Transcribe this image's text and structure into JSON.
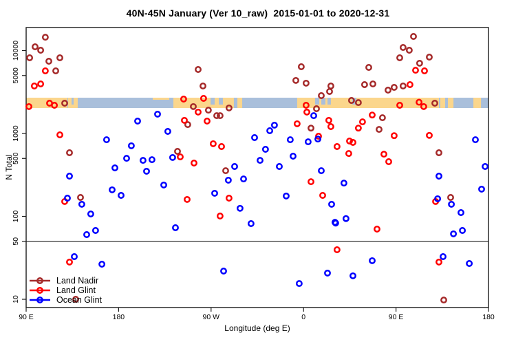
{
  "title": "40N-45N January (Ver 10_raw)  2015-01-01 to 2020-12-31",
  "axes": {
    "x": {
      "label": "Longitude (deg E)",
      "range_deg_plot": [
        90,
        540
      ],
      "ticks": [
        {
          "deg": 90,
          "label": "90 E"
        },
        {
          "deg": 180,
          "label": "180"
        },
        {
          "deg": 270,
          "label": "90 W"
        },
        {
          "deg": 360,
          "label": "0"
        },
        {
          "deg": 450,
          "label": "90 E"
        },
        {
          "deg": 540,
          "label": "180"
        }
      ]
    },
    "y": {
      "label": "N Total",
      "scale": "log",
      "range": [
        9,
        20000
      ],
      "ticks": [
        {
          "value": 10,
          "label": "10"
        },
        {
          "value": 50,
          "label": "50"
        },
        {
          "value": 100,
          "label": "100"
        },
        {
          "value": 500,
          "label": "500"
        },
        {
          "value": 1000,
          "label": "1000"
        },
        {
          "value": 5000,
          "label": "5000"
        },
        {
          "value": 10000,
          "label": "10000"
        }
      ]
    }
  },
  "chart_data": {
    "type": "scatter",
    "title": "40N-45N January (Ver 10_raw)  2015-01-01 to 2020-12-31",
    "xlabel": "Longitude (deg E)",
    "ylabel": "N Total",
    "grid": false,
    "legend_position": "bottom-left",
    "reference_line_n": 50,
    "map_band": {
      "description": "geographic strip of 40N-45N latitude drawn across plot near N=2300",
      "n_top": 2700,
      "n_bottom": 1950,
      "sea_color": "#A9BFDB",
      "land_color": "#FBD68C",
      "land_segments_deg": [
        [
          90,
          130.2
        ],
        [
          130.8,
          140.2
        ],
        [
          233.3,
          292.2
        ],
        [
          295.6,
          300.3
        ],
        [
          353.8,
          491.8
        ],
        [
          493.1,
          497.8
        ],
        [
          500.5,
          505.9
        ],
        [
          525.3,
          532.7
        ]
      ],
      "sea_notches_deg": [
        [
          134.2,
          136.2
        ],
        [
          269.5,
          273.5
        ],
        [
          277.5,
          281.5
        ],
        [
          371.2,
          375.3
        ],
        [
          377.3,
          381.3
        ],
        [
          383.3,
          386.6
        ],
        [
          407.4,
          411.4
        ]
      ],
      "land_slivers_deg": [
        [
          213.2,
          229.3
        ]
      ]
    },
    "series": [
      {
        "name": "Land Nadir",
        "color": "#A52A2A",
        "points": [
          [
            108.7,
            14500
          ],
          [
            98.7,
            11100
          ],
          [
            104.1,
            10100
          ],
          [
            93.4,
            8180
          ],
          [
            122.8,
            8180
          ],
          [
            112.1,
            7430
          ],
          [
            118.8,
            5690
          ],
          [
            127.5,
            2320
          ],
          [
            132.2,
            586
          ],
          [
            237.3,
            608
          ],
          [
            252.7,
            2110
          ],
          [
            247.3,
            1280
          ],
          [
            257.4,
            5910
          ],
          [
            262.1,
            3740
          ],
          [
            357.8,
            6380
          ],
          [
            352.5,
            4360
          ],
          [
            362.5,
            4040
          ],
          [
            386.6,
            3740
          ],
          [
            385.3,
            3210
          ],
          [
            377.3,
            2860
          ],
          [
            287.5,
            2030
          ],
          [
            267.4,
            1910
          ],
          [
            275.5,
            1640
          ],
          [
            278.8,
            1640
          ],
          [
            372.6,
            1990
          ],
          [
            367.2,
            1160
          ],
          [
            284.2,
            356
          ],
          [
            467.0,
            14800
          ],
          [
            456.9,
            10900
          ],
          [
            462.9,
            10100
          ],
          [
            453.6,
            8180
          ],
          [
            482.4,
            8340
          ],
          [
            473.0,
            7030
          ],
          [
            423.5,
            6260
          ],
          [
            419.4,
            3880
          ],
          [
            427.5,
            3960
          ],
          [
            442.2,
            3330
          ],
          [
            448.2,
            3600
          ],
          [
            456.9,
            3740
          ],
          [
            406.7,
            2500
          ],
          [
            413.4,
            2360
          ],
          [
            487.8,
            2320
          ],
          [
            436.8,
            1550
          ],
          [
            433.5,
            1120
          ],
          [
            491.8,
            586
          ],
          [
            142.9,
            169
          ],
          [
            138.2,
            10.0
          ],
          [
            503.2,
            169
          ],
          [
            496.5,
            9.8
          ]
        ]
      },
      {
        "name": "Land Glint",
        "color": "#FF0000",
        "points": [
          [
            108.7,
            5690
          ],
          [
            98.0,
            3740
          ],
          [
            104.1,
            3960
          ],
          [
            92.7,
            2110
          ],
          [
            112.8,
            2320
          ],
          [
            117.5,
            2190
          ],
          [
            122.8,
            962
          ],
          [
            243.3,
            2600
          ],
          [
            262.7,
            2650
          ],
          [
            257.4,
            1810
          ],
          [
            244.0,
            1440
          ],
          [
            240.0,
            522
          ],
          [
            253.4,
            440
          ],
          [
            266.1,
            1410
          ],
          [
            272.1,
            752
          ],
          [
            280.2,
            695
          ],
          [
            362.5,
            2190
          ],
          [
            363.2,
            1810
          ],
          [
            353.8,
            1310
          ],
          [
            374.6,
            927
          ],
          [
            384.6,
            1440
          ],
          [
            386.6,
            1210
          ],
          [
            392.6,
            695
          ],
          [
            246.7,
            160
          ],
          [
            287.5,
            166
          ],
          [
            278.8,
            101
          ],
          [
            367.2,
            262
          ],
          [
            378.6,
            179
          ],
          [
            392.6,
            39.6
          ],
          [
            469.0,
            5790
          ],
          [
            477.7,
            5690
          ],
          [
            463.6,
            3880
          ],
          [
            453.6,
            2190
          ],
          [
            472.4,
            2380
          ],
          [
            477.0,
            2110
          ],
          [
            426.8,
            1670
          ],
          [
            417.4,
            1380
          ],
          [
            413.4,
            1160
          ],
          [
            404.7,
            811
          ],
          [
            408.1,
            780
          ],
          [
            404.0,
            574
          ],
          [
            448.2,
            940
          ],
          [
            482.4,
            947
          ],
          [
            438.2,
            563
          ],
          [
            442.9,
            457
          ],
          [
            127.5,
            151
          ],
          [
            132.2,
            28.1
          ],
          [
            488.5,
            151
          ],
          [
            431.5,
            70.2
          ],
          [
            491.8,
            28.1
          ]
        ]
      },
      {
        "name": "Ocean Glint",
        "color": "#0000FF",
        "points": [
          [
            217.9,
            1710
          ],
          [
            198.5,
            1410
          ],
          [
            227.9,
            1060
          ],
          [
            168.3,
            841
          ],
          [
            192.4,
            710
          ],
          [
            187.8,
            502
          ],
          [
            203.8,
            474
          ],
          [
            212.5,
            483
          ],
          [
            232.6,
            513
          ],
          [
            176.4,
            385
          ],
          [
            369.9,
            1640
          ],
          [
            331.7,
            1260
          ],
          [
            327.1,
            1080
          ],
          [
            312.3,
            891
          ],
          [
            347.1,
            841
          ],
          [
            364.5,
            794
          ],
          [
            323.0,
            644
          ],
          [
            317.7,
            474
          ],
          [
            349.8,
            532
          ],
          [
            373.9,
            857
          ],
          [
            292.9,
            400
          ],
          [
            336.4,
            400
          ],
          [
            527.3,
            841
          ],
          [
            536.7,
            400
          ],
          [
            132.2,
            306
          ],
          [
            207.2,
            350
          ],
          [
            223.9,
            239
          ],
          [
            173.7,
            209
          ],
          [
            182.4,
            179
          ],
          [
            130.2,
            166
          ],
          [
            144.2,
            140
          ],
          [
            152.9,
            107
          ],
          [
            148.9,
            60.3
          ],
          [
            157.6,
            67.6
          ],
          [
            235.3,
            72.9
          ],
          [
            136.9,
            32.7
          ],
          [
            163.7,
            26.5
          ],
          [
            286.8,
            273
          ],
          [
            301.6,
            283
          ],
          [
            273.5,
            190
          ],
          [
            298.2,
            125
          ],
          [
            308.9,
            81.8
          ],
          [
            343.1,
            176
          ],
          [
            377.3,
            356
          ],
          [
            387.3,
            140
          ],
          [
            390.6,
            84.9
          ],
          [
            282.2,
            21.9
          ],
          [
            355.8,
            15.5
          ],
          [
            383.3,
            20.7
          ],
          [
            399.3,
            252
          ],
          [
            491.8,
            306
          ],
          [
            533.3,
            213
          ],
          [
            490.5,
            163
          ],
          [
            503.9,
            140
          ],
          [
            513.2,
            111
          ],
          [
            401.3,
            94.0
          ],
          [
            391.3,
            83.0
          ],
          [
            505.9,
            61.5
          ],
          [
            514.6,
            67.6
          ],
          [
            426.8,
            29.2
          ],
          [
            495.8,
            32.7
          ],
          [
            521.3,
            27.0
          ],
          [
            408.1,
            19.2
          ]
        ]
      }
    ]
  }
}
